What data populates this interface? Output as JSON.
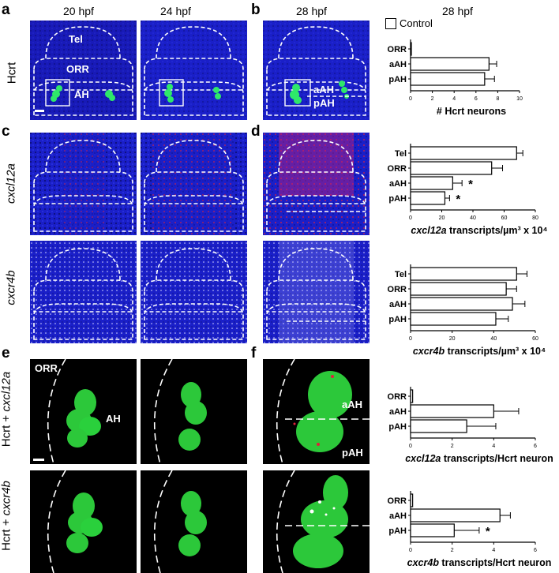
{
  "panel_letters": {
    "a": "a",
    "b": "b",
    "c": "c",
    "d": "d",
    "e": "e",
    "f": "f"
  },
  "headers": {
    "h20": "20 hpf",
    "h24": "24 hpf",
    "h28": "28 hpf",
    "h28chart": "28 hpf"
  },
  "row_labels": {
    "hcrt": "Hcrt",
    "cxcl12a": "cxcl12a",
    "cxcr4b": "cxcr4b",
    "e_top_prefix": "Hcrt + ",
    "e_top_gene": "cxcl12a",
    "e_bot_prefix": "Hcrt + ",
    "e_bot_gene": "cxcr4b"
  },
  "image_annotations": {
    "tel": "Tel",
    "orr": "ORR",
    "ah": "AH",
    "aah": "aAH",
    "pah": "pAH",
    "e_orr": "ORR",
    "e_ah": "AH",
    "f_aah": "aAH",
    "f_pah": "pAH"
  },
  "legend": {
    "control": "Control"
  },
  "colors": {
    "blue": "#1a1fc8",
    "green": "#2ee86a",
    "red": "#e0203a",
    "black": "#000000",
    "white": "#ffffff"
  },
  "chart_data": [
    {
      "type": "bar",
      "orientation": "horizontal",
      "categories": [
        "ORR",
        "aAH",
        "pAH"
      ],
      "values": [
        0,
        7.2,
        6.8
      ],
      "errors": [
        0,
        0.7,
        0.9
      ],
      "xlim": [
        0,
        10
      ],
      "xticks": [
        "0",
        "2",
        "4",
        "6",
        "8",
        "10"
      ],
      "xlabel": "# Hcrt neurons",
      "significance": [
        "",
        "",
        ""
      ]
    },
    {
      "type": "bar",
      "orientation": "horizontal",
      "categories": [
        "Tel",
        "ORR",
        "aAH",
        "pAH"
      ],
      "values": [
        68,
        52,
        27,
        22
      ],
      "errors": [
        4,
        7,
        6,
        3
      ],
      "xlim": [
        0,
        80
      ],
      "xticks": [
        "0",
        "20",
        "40",
        "60",
        "80"
      ],
      "xlabel_prefix": "cxcl12a",
      "xlabel_suffix": " transcripts/µm³ x 10⁴",
      "significance": [
        "",
        "",
        "*",
        "*"
      ]
    },
    {
      "type": "bar",
      "orientation": "horizontal",
      "categories": [
        "Tel",
        "ORR",
        "aAH",
        "pAH"
      ],
      "values": [
        51,
        46,
        49,
        41
      ],
      "errors": [
        5,
        5,
        6,
        6
      ],
      "xlim": [
        0,
        60
      ],
      "xticks": [
        "0",
        "20",
        "40",
        "60"
      ],
      "xlabel_prefix": "cxcr4b",
      "xlabel_suffix": " transcripts/µm³ x 10⁴",
      "significance": [
        "",
        "",
        "",
        ""
      ]
    },
    {
      "type": "bar",
      "orientation": "horizontal",
      "categories": [
        "ORR",
        "aAH",
        "pAH"
      ],
      "values": [
        0.1,
        4.0,
        2.7
      ],
      "errors": [
        0,
        1.2,
        1.4
      ],
      "xlim": [
        0,
        6
      ],
      "xticks": [
        "0",
        "2",
        "4",
        "6"
      ],
      "xlabel_prefix": "cxcl12a",
      "xlabel_suffix": " transcripts/Hcrt neuron",
      "significance": [
        "",
        "",
        ""
      ]
    },
    {
      "type": "bar",
      "orientation": "horizontal",
      "categories": [
        "ORR",
        "aAH",
        "pAH"
      ],
      "values": [
        0.1,
        4.3,
        2.1
      ],
      "errors": [
        0,
        0.5,
        1.2
      ],
      "xlim": [
        0,
        6
      ],
      "xticks": [
        "0",
        "2",
        "4",
        "6"
      ],
      "xlabel_prefix": "cxcr4b",
      "xlabel_suffix": " transcripts/Hcrt neuron",
      "significance": [
        "",
        "",
        "*"
      ]
    }
  ]
}
